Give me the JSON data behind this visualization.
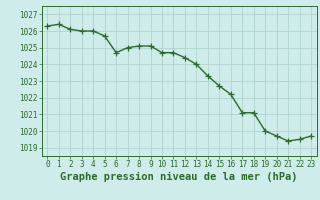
{
  "x": [
    0,
    1,
    2,
    3,
    4,
    5,
    6,
    7,
    8,
    9,
    10,
    11,
    12,
    13,
    14,
    15,
    16,
    17,
    18,
    19,
    20,
    21,
    22,
    23
  ],
  "y": [
    1026.3,
    1026.4,
    1026.1,
    1026.0,
    1026.0,
    1025.7,
    1024.7,
    1025.0,
    1025.1,
    1025.1,
    1024.7,
    1024.7,
    1024.4,
    1024.0,
    1023.3,
    1022.7,
    1022.2,
    1021.1,
    1021.1,
    1020.0,
    1019.7,
    1019.4,
    1019.5,
    1019.7
  ],
  "ylim": [
    1018.5,
    1027.5
  ],
  "xlim": [
    -0.5,
    23.5
  ],
  "yticks": [
    1019,
    1020,
    1021,
    1022,
    1023,
    1024,
    1025,
    1026,
    1027
  ],
  "xticks": [
    0,
    1,
    2,
    3,
    4,
    5,
    6,
    7,
    8,
    9,
    10,
    11,
    12,
    13,
    14,
    15,
    16,
    17,
    18,
    19,
    20,
    21,
    22,
    23
  ],
  "line_color": "#2d6a2d",
  "marker": "+",
  "marker_size": 4,
  "line_width": 1.0,
  "bg_color": "#cdecea",
  "grid_color": "#aaceca",
  "xlabel": "Graphe pression niveau de la mer (hPa)",
  "xlabel_fontsize": 7.5,
  "tick_fontsize": 5.5,
  "title": ""
}
